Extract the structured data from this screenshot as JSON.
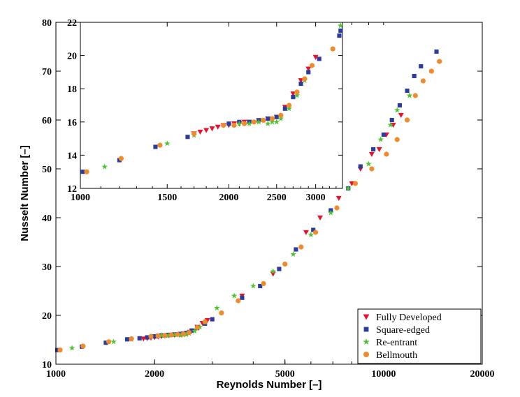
{
  "chart_data": [
    {
      "type": "scatter",
      "xlabel": "Reynolds Number [–]",
      "ylabel": "Nusselt Number [–]",
      "xscale": "log",
      "xlim": [
        1000,
        20000
      ],
      "ylim": [
        10,
        80
      ],
      "xticks": [
        1000,
        2000,
        5000,
        10000,
        20000
      ],
      "xtick_labels": [
        "1000",
        "2000",
        "5000",
        "10000",
        "20000"
      ],
      "yticks": [
        10,
        20,
        30,
        40,
        50,
        60,
        70,
        80
      ],
      "ytick_labels": [
        "10",
        "20",
        "30",
        "40",
        "50",
        "60",
        "70",
        "80"
      ],
      "legend_position": "bottom-right",
      "series": [
        {
          "name": "Fully Developed",
          "marker": "triangle-down",
          "color": "#e8102c",
          "x": [
            1850,
            1900,
            1950,
            2000,
            2050,
            2100,
            2150,
            2200,
            2300,
            2400,
            2500,
            2600,
            2700,
            2800,
            2900,
            3700,
            4600,
            5800,
            6400,
            7300,
            8000,
            8500,
            9200,
            9700,
            10200,
            10700,
            11300
          ],
          "y": [
            15.2,
            15.3,
            15.4,
            15.5,
            15.6,
            15.7,
            15.8,
            15.9,
            16.0,
            16.1,
            16.3,
            16.8,
            17.6,
            18.4,
            19.0,
            24.0,
            28.5,
            37.0,
            40.0,
            44.0,
            47.0,
            50.0,
            53.0,
            54.0,
            57.0,
            59.0,
            61.0
          ]
        },
        {
          "name": "Square-edged",
          "marker": "square",
          "color": "#2a3ca0",
          "x": [
            1010,
            1200,
            1420,
            1650,
            1800,
            1900,
            2000,
            2050,
            2100,
            2150,
            2200,
            2250,
            2300,
            2350,
            2400,
            2450,
            2500,
            2550,
            2600,
            2700,
            2850,
            3000,
            3700,
            4200,
            4800,
            5400,
            6100,
            6900,
            7800,
            8500,
            9300,
            10000,
            10600,
            11200,
            11800,
            12400,
            13000,
            14500
          ],
          "y": [
            12.9,
            13.6,
            14.4,
            15.1,
            15.3,
            15.5,
            15.7,
            15.8,
            15.9,
            15.9,
            16.0,
            16.0,
            16.1,
            16.1,
            16.2,
            16.3,
            16.4,
            16.6,
            16.9,
            17.4,
            18.3,
            19.2,
            23.6,
            26.0,
            29.5,
            33.5,
            37.5,
            41.5,
            46.0,
            50.5,
            54.0,
            57.0,
            60.0,
            63.0,
            66.0,
            69.0,
            71.0,
            74.0
          ]
        },
        {
          "name": "Re-entrant",
          "marker": "star",
          "color": "#4cc52e",
          "x": [
            1120,
            1500,
            1700,
            2100,
            2200,
            2300,
            2400,
            2450,
            2500,
            2550,
            2650,
            2750,
            2850,
            3100,
            3500,
            4000,
            4600,
            5300,
            6000,
            6900,
            7800,
            9000,
            9800,
            10500,
            11000,
            12000
          ],
          "y": [
            13.3,
            14.6,
            15.1,
            15.9,
            15.9,
            16.0,
            15.9,
            16.0,
            16.1,
            16.3,
            16.8,
            17.6,
            18.6,
            21.5,
            24.0,
            26.0,
            29.0,
            32.5,
            36.5,
            41.0,
            46.0,
            51.0,
            56.0,
            59.0,
            62.0,
            65.0
          ]
        },
        {
          "name": "Bellmouth",
          "marker": "circle",
          "color": "#f08a2b",
          "x": [
            1030,
            1210,
            1450,
            1700,
            1950,
            2050,
            2150,
            2250,
            2350,
            2450,
            2550,
            2700,
            2850,
            3200,
            3600,
            4300,
            5000,
            5600,
            6200,
            7200,
            8200,
            9200,
            10200,
            11000,
            11800,
            12500,
            13200,
            14000,
            14800
          ],
          "y": [
            12.9,
            13.7,
            14.6,
            15.2,
            15.7,
            15.8,
            15.9,
            16.0,
            16.1,
            16.2,
            16.5,
            17.5,
            18.7,
            20.5,
            23.0,
            26.5,
            30.5,
            34.0,
            37.0,
            42.0,
            47.0,
            50.0,
            53.0,
            56.0,
            60.0,
            65.0,
            68.0,
            70.0,
            72.0
          ]
        }
      ]
    },
    {
      "type": "scatter",
      "role": "inset",
      "xscale": "log",
      "xlim": [
        1000,
        3400
      ],
      "ylim": [
        12,
        22
      ],
      "xticks": [
        1000,
        1500,
        2000,
        2500,
        3000
      ],
      "xtick_labels": [
        "1000",
        "1500",
        "2000",
        "2500",
        "3000"
      ],
      "yticks": [
        12,
        14,
        16,
        18,
        20,
        22
      ],
      "ytick_labels": [
        "12",
        "14",
        "16",
        "18",
        "20",
        "22"
      ],
      "series": [
        {
          "name": "Fully Developed",
          "marker": "triangle-down",
          "color": "#e8102c",
          "x": [
            1700,
            1750,
            1800,
            1850,
            1900,
            1950,
            2000,
            2050,
            2100,
            2150,
            2200,
            2300,
            2400,
            2500,
            2600,
            2700,
            2800,
            2900,
            3000
          ],
          "y": [
            15.3,
            15.4,
            15.5,
            15.6,
            15.7,
            15.8,
            15.8,
            15.9,
            15.9,
            16.0,
            16.0,
            16.1,
            16.2,
            16.3,
            16.9,
            17.7,
            18.5,
            19.2,
            19.9
          ]
        },
        {
          "name": "Square-edged",
          "marker": "square",
          "color": "#2a3ca0",
          "x": [
            1010,
            1200,
            1420,
            1650,
            2000,
            2100,
            2200,
            2300,
            2400,
            2500,
            2600,
            2700,
            2800,
            2900,
            3050,
            3350,
            3370
          ],
          "y": [
            13.0,
            13.7,
            14.5,
            15.1,
            15.9,
            16.0,
            16.0,
            16.1,
            16.2,
            16.3,
            16.8,
            17.5,
            18.3,
            19.0,
            19.8,
            21.2,
            21.5
          ]
        },
        {
          "name": "Re-entrant",
          "marker": "star",
          "color": "#4cc52e",
          "x": [
            1120,
            1500,
            1700,
            2100,
            2200,
            2300,
            2400,
            2450,
            2500,
            2550,
            2650,
            2750,
            2850,
            3370
          ],
          "y": [
            13.3,
            14.7,
            15.2,
            15.9,
            15.9,
            16.0,
            15.9,
            16.0,
            16.0,
            16.2,
            16.8,
            17.6,
            18.5,
            21.8
          ]
        },
        {
          "name": "Bellmouth",
          "marker": "circle",
          "color": "#f08a2b",
          "x": [
            1030,
            1210,
            1450,
            1700,
            1950,
            2050,
            2150,
            2250,
            2350,
            2450,
            2550,
            2650,
            2750,
            2850,
            2950,
            3250
          ],
          "y": [
            13.0,
            13.8,
            14.6,
            15.3,
            15.8,
            15.8,
            15.9,
            16.0,
            16.1,
            16.2,
            16.4,
            17.0,
            17.8,
            18.6,
            19.4,
            20.4
          ]
        }
      ]
    }
  ]
}
